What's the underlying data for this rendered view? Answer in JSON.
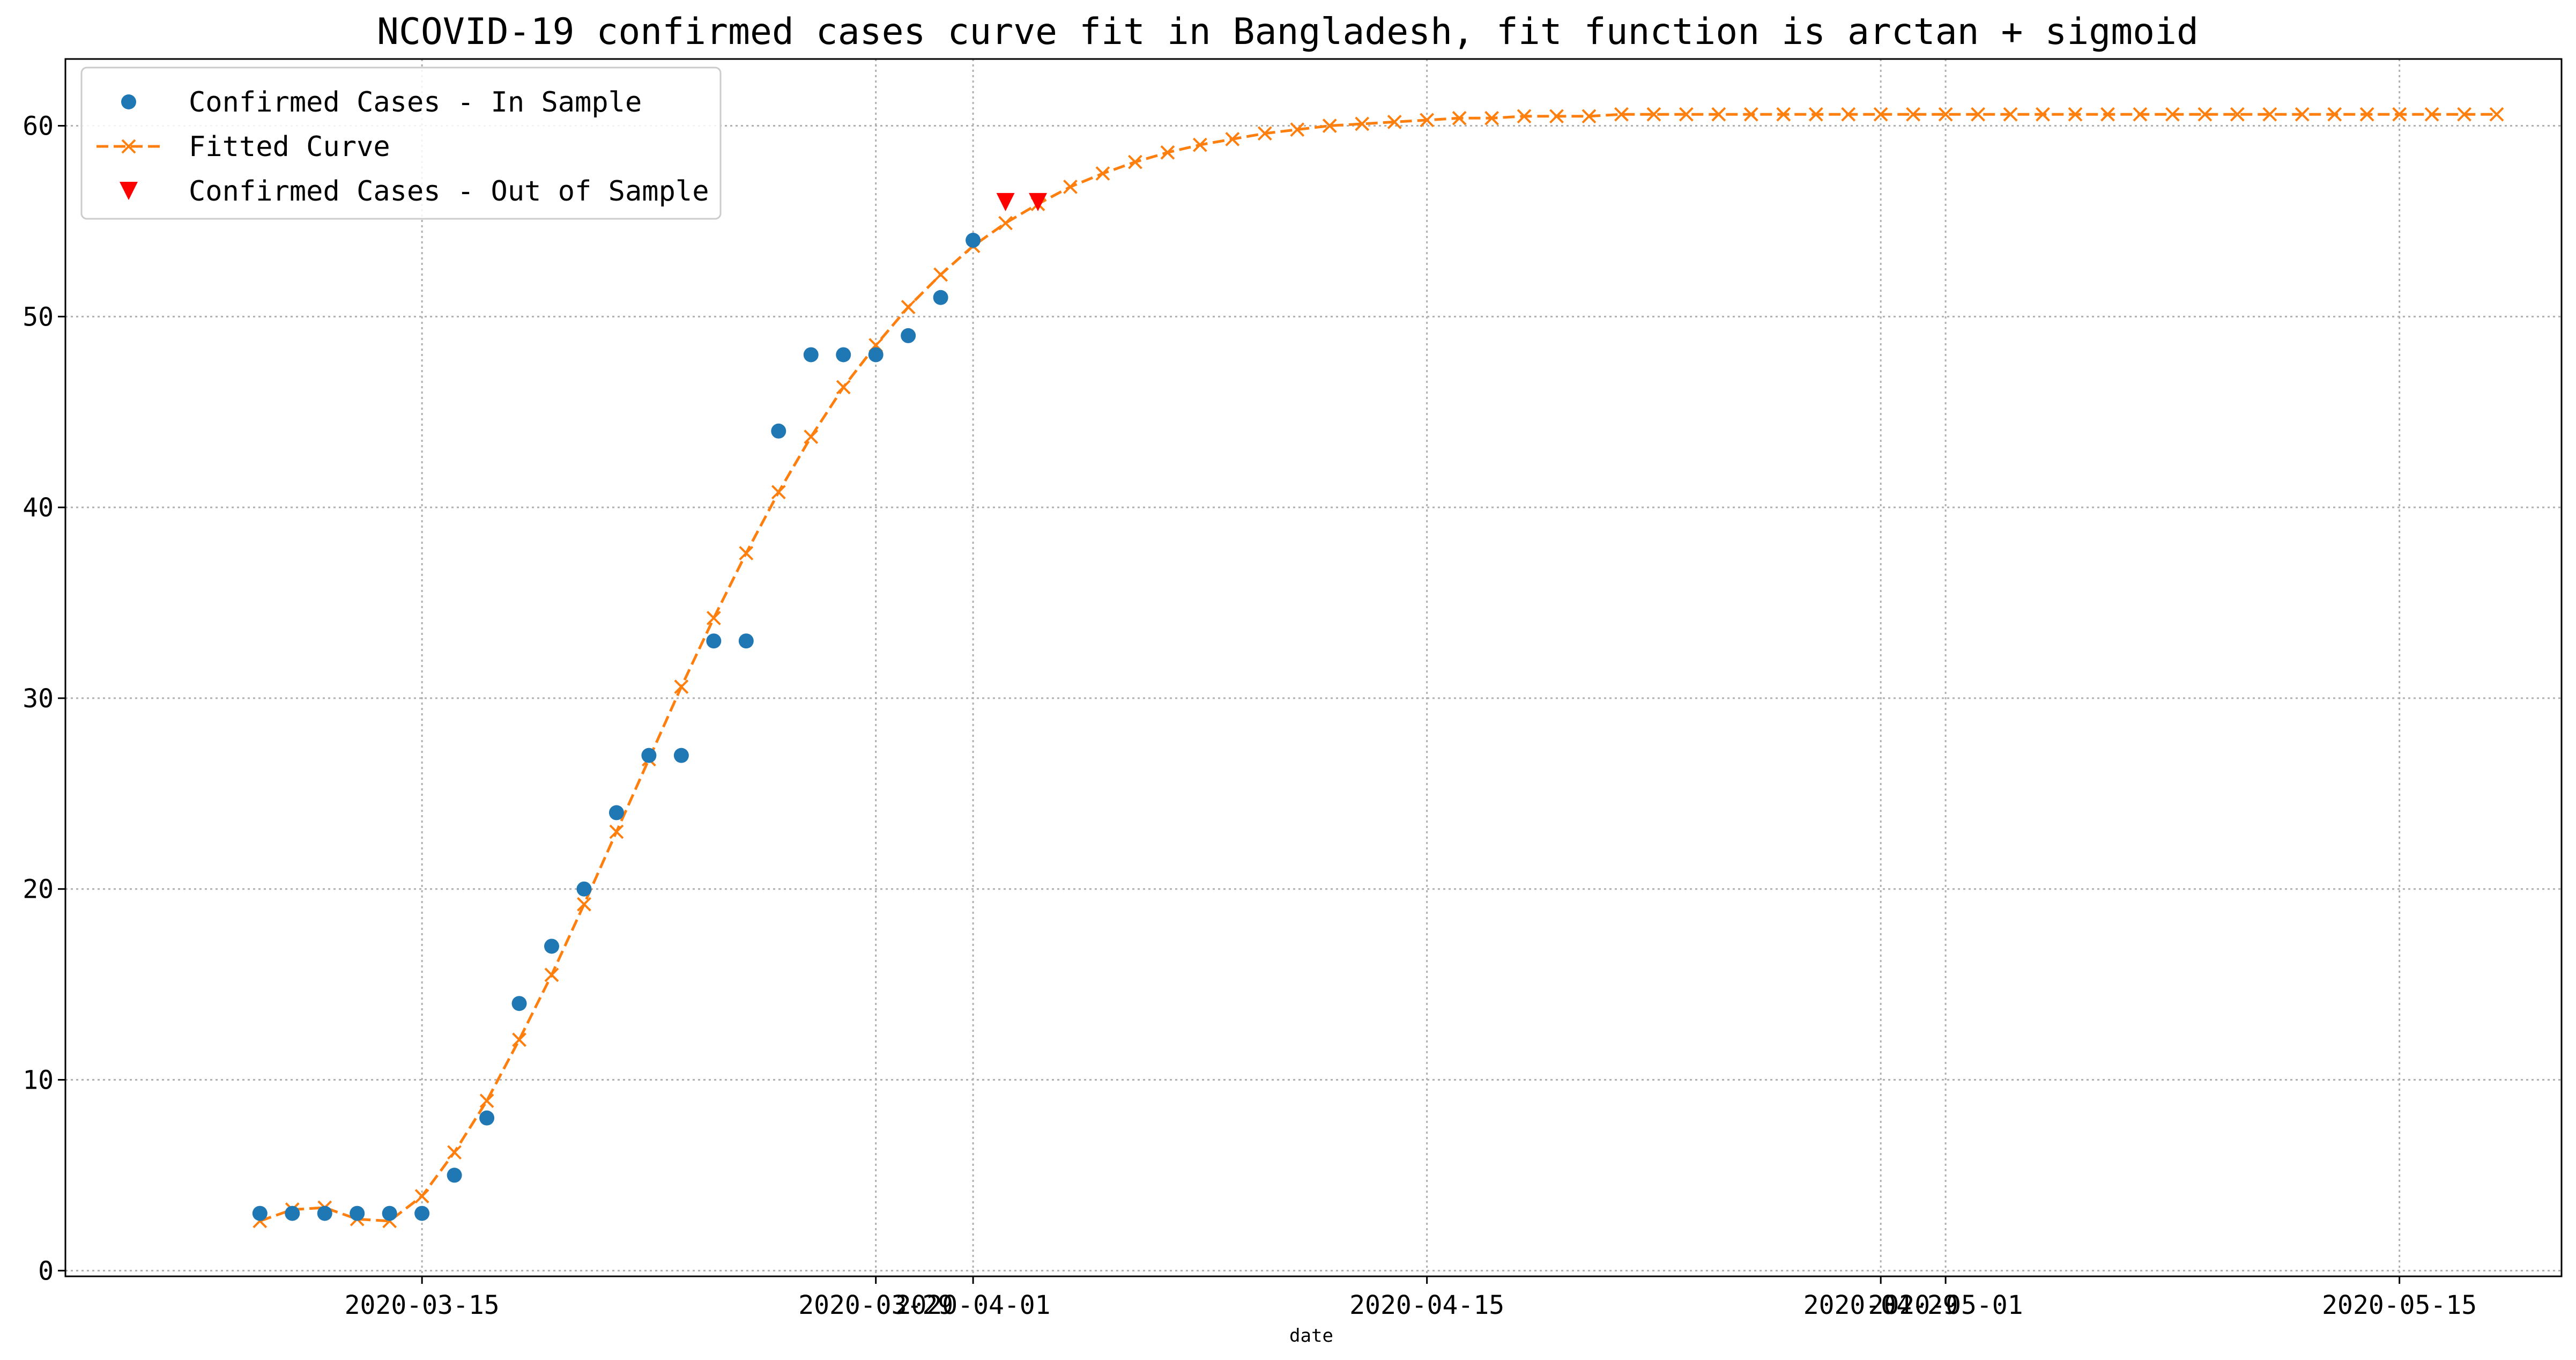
{
  "chart_data": {
    "type": "line",
    "title": "NCOVID-19 confirmed cases curve fit in Bangladesh, fit function is arctan + sigmoid",
    "xlabel": "date",
    "ylabel": "",
    "x_type": "date",
    "xlim": [
      "2020-03-04",
      "2020-05-20"
    ],
    "ylim": [
      -0.3,
      63.5
    ],
    "yticks": [
      0,
      10,
      20,
      30,
      40,
      50,
      60
    ],
    "xticks": [
      {
        "date": "2020-03-15",
        "label": "2020-03-15"
      },
      {
        "date": "2020-03-29",
        "label": "2020-03-29"
      },
      {
        "date": "2020-04-01",
        "label": "2020-04-01"
      },
      {
        "date": "2020-04-15",
        "label": "2020-04-15"
      },
      {
        "date": "2020-04-29",
        "label": "2020-04-29"
      },
      {
        "date": "2020-05-01",
        "label": "2020-05-01"
      },
      {
        "date": "2020-05-15",
        "label": "2020-05-15"
      }
    ],
    "grid": true,
    "legend_position": "upper-left",
    "colors": {
      "in_sample": "#1f77b4",
      "fitted": "#ff7f0e",
      "out_sample": "#ff0000",
      "grid": "#b0b0b0"
    },
    "series": [
      {
        "name": "Confirmed Cases - In Sample",
        "style": "markers-circle",
        "x": [
          "2020-03-10",
          "2020-03-11",
          "2020-03-12",
          "2020-03-13",
          "2020-03-14",
          "2020-03-15",
          "2020-03-16",
          "2020-03-17",
          "2020-03-18",
          "2020-03-19",
          "2020-03-20",
          "2020-03-21",
          "2020-03-22",
          "2020-03-23",
          "2020-03-24",
          "2020-03-25",
          "2020-03-26",
          "2020-03-27",
          "2020-03-28",
          "2020-03-29",
          "2020-03-30",
          "2020-03-31",
          "2020-04-01"
        ],
        "y": [
          3,
          3,
          3,
          3,
          3,
          3,
          5,
          8,
          14,
          17,
          20,
          24,
          27,
          27,
          33,
          33,
          44,
          48,
          48,
          48,
          49,
          51,
          54
        ]
      },
      {
        "name": "Fitted Curve",
        "style": "dashed-x",
        "x": [
          "2020-03-10",
          "2020-03-11",
          "2020-03-12",
          "2020-03-13",
          "2020-03-14",
          "2020-03-15",
          "2020-03-16",
          "2020-03-17",
          "2020-03-18",
          "2020-03-19",
          "2020-03-20",
          "2020-03-21",
          "2020-03-22",
          "2020-03-23",
          "2020-03-24",
          "2020-03-25",
          "2020-03-26",
          "2020-03-27",
          "2020-03-28",
          "2020-03-29",
          "2020-03-30",
          "2020-03-31",
          "2020-04-01",
          "2020-04-02",
          "2020-04-03",
          "2020-04-04",
          "2020-04-05",
          "2020-04-06",
          "2020-04-07",
          "2020-04-08",
          "2020-04-09",
          "2020-04-10",
          "2020-04-11",
          "2020-04-12",
          "2020-04-13",
          "2020-04-14",
          "2020-04-15",
          "2020-04-16",
          "2020-04-17",
          "2020-04-18",
          "2020-04-19",
          "2020-04-20",
          "2020-04-21",
          "2020-04-22",
          "2020-04-23",
          "2020-04-24",
          "2020-04-25",
          "2020-04-26",
          "2020-04-27",
          "2020-04-28",
          "2020-04-29",
          "2020-04-30",
          "2020-05-01",
          "2020-05-02",
          "2020-05-03",
          "2020-05-04",
          "2020-05-05",
          "2020-05-06",
          "2020-05-07",
          "2020-05-08",
          "2020-05-09",
          "2020-05-10",
          "2020-05-11",
          "2020-05-12",
          "2020-05-13",
          "2020-05-14",
          "2020-05-15",
          "2020-05-16",
          "2020-05-17",
          "2020-05-18"
        ],
        "y": [
          2.6,
          3.2,
          3.3,
          2.7,
          2.6,
          3.9,
          6.2,
          8.9,
          12.1,
          15.5,
          19.2,
          23.0,
          26.8,
          30.6,
          34.2,
          37.6,
          40.8,
          43.7,
          46.3,
          48.5,
          50.5,
          52.2,
          53.7,
          54.9,
          55.9,
          56.8,
          57.5,
          58.1,
          58.6,
          59.0,
          59.3,
          59.6,
          59.8,
          60.0,
          60.1,
          60.2,
          60.3,
          60.4,
          60.4,
          60.5,
          60.5,
          60.5,
          60.6,
          60.6,
          60.6,
          60.6,
          60.6,
          60.6,
          60.6,
          60.6,
          60.6,
          60.6,
          60.6,
          60.6,
          60.6,
          60.6,
          60.6,
          60.6,
          60.6,
          60.6,
          60.6,
          60.6,
          60.6,
          60.6,
          60.6,
          60.6,
          60.6,
          60.6,
          60.6,
          60.6
        ]
      },
      {
        "name": "Confirmed Cases - Out of Sample",
        "style": "markers-triangle-down",
        "x": [
          "2020-04-02",
          "2020-04-03"
        ],
        "y": [
          56,
          56
        ]
      }
    ]
  }
}
